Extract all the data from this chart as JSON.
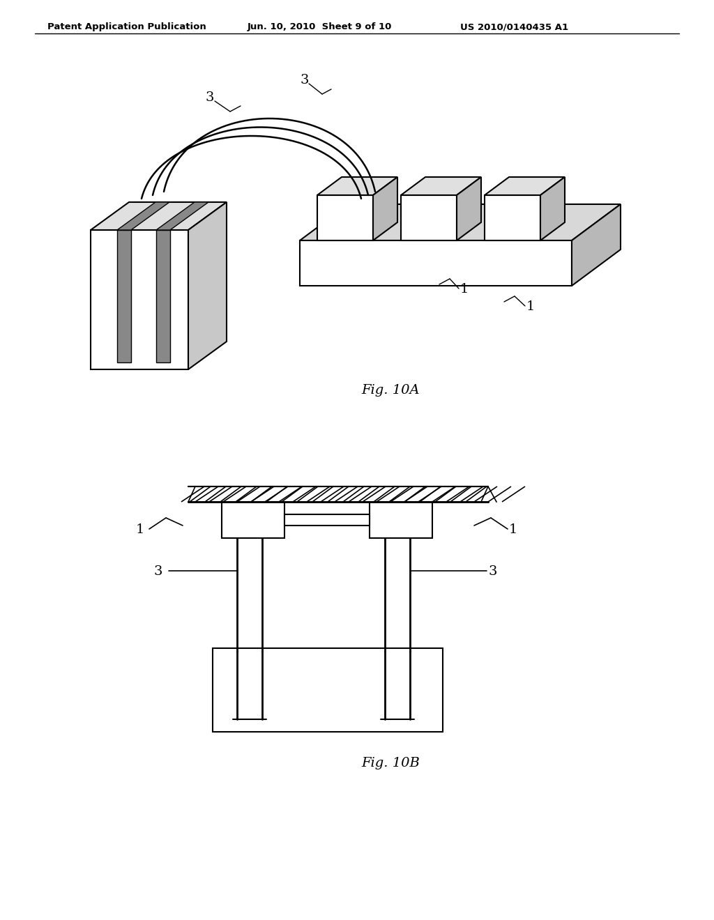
{
  "background_color": "#ffffff",
  "header_left": "Patent Application Publication",
  "header_mid": "Jun. 10, 2010  Sheet 9 of 10",
  "header_right": "US 2010/0140435 A1",
  "fig10a_label": "Fig. 10A",
  "fig10b_label": "Fig. 10B",
  "line_color": "#000000"
}
